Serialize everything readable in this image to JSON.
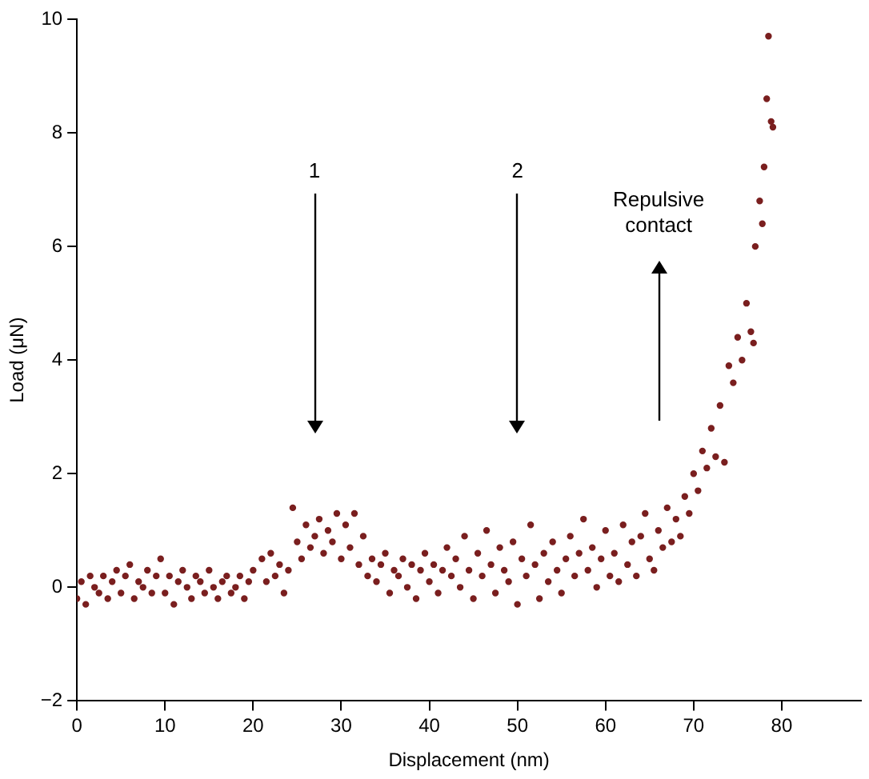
{
  "chart_data": {
    "type": "scatter",
    "xlabel": "Displacement (nm)",
    "ylabel": "Load (μN)",
    "xlim": [
      0,
      89
    ],
    "xticks": [
      0,
      10,
      20,
      30,
      40,
      50,
      60,
      70,
      80
    ],
    "ylim": [
      -2,
      10
    ],
    "yticks": [
      -2,
      0,
      2,
      4,
      6,
      8,
      10
    ],
    "grid": false,
    "legend": false,
    "marker": "circle",
    "annotations": [
      "1",
      "2",
      "Repulsive contact"
    ],
    "series": [
      {
        "color": "#7a1f1f",
        "x": [
          0,
          0.5,
          1,
          1.5,
          2,
          2.5,
          3,
          3.5,
          4,
          4.5,
          5,
          5.5,
          6,
          6.5,
          7,
          7.5,
          8,
          8.5,
          9,
          9.5,
          10,
          10.5,
          11,
          11.5,
          12,
          12.5,
          13,
          13.5,
          14,
          14.5,
          15,
          15.5,
          16,
          16.5,
          17,
          17.5,
          18,
          18.5,
          19,
          19.5,
          20,
          21,
          21.5,
          22,
          22.5,
          23,
          23.5,
          24,
          24.5,
          25,
          25.5,
          26,
          26.5,
          27,
          27.5,
          28,
          28.5,
          29,
          29.5,
          30,
          30.5,
          31,
          31.5,
          32,
          32.5,
          33,
          33.5,
          34,
          34.5,
          35,
          35.5,
          36,
          36.5,
          37,
          37.5,
          38,
          38.5,
          39,
          39.5,
          40,
          40.5,
          41,
          41.5,
          42,
          42.5,
          43,
          43.5,
          44,
          44.5,
          45,
          45.5,
          46,
          46.5,
          47,
          47.5,
          48,
          48.5,
          49,
          49.5,
          50,
          50.5,
          51,
          51.5,
          52,
          52.5,
          53,
          53.5,
          54,
          54.5,
          55,
          55.5,
          56,
          56.5,
          57,
          57.5,
          58,
          58.5,
          59,
          59.5,
          60,
          60.5,
          61,
          61.5,
          62,
          62.5,
          63,
          63.5,
          64,
          64.5,
          65,
          65.5,
          66,
          66.5,
          67,
          67.5,
          68,
          68.5,
          69,
          69.5,
          70,
          70.5,
          71,
          71.5,
          72,
          72.5,
          73,
          73.5,
          74,
          74.5,
          75,
          75.5,
          76,
          76.5,
          76.8,
          77,
          77.5,
          77.8,
          78,
          78.3,
          78.5,
          78.8,
          79
        ],
        "values": [
          -0.2,
          0.1,
          -0.3,
          0.2,
          0,
          -0.1,
          0.2,
          -0.2,
          0.1,
          0.3,
          -0.1,
          0.2,
          0.4,
          -0.2,
          0.1,
          0,
          0.3,
          -0.1,
          0.2,
          0.5,
          -0.1,
          0.2,
          -0.3,
          0.1,
          0.3,
          0,
          -0.2,
          0.2,
          0.1,
          -0.1,
          0.3,
          0,
          -0.2,
          0.1,
          0.2,
          -0.1,
          0,
          0.2,
          -0.2,
          0.1,
          0.3,
          0.5,
          0.1,
          0.6,
          0.2,
          0.4,
          -0.1,
          0.3,
          1.4,
          0.8,
          0.5,
          1.1,
          0.7,
          0.9,
          1.2,
          0.6,
          1.0,
          0.8,
          1.3,
          0.5,
          1.1,
          0.7,
          1.3,
          0.4,
          0.9,
          0.2,
          0.5,
          0.1,
          0.4,
          0.6,
          -0.1,
          0.3,
          0.2,
          0.5,
          0,
          0.4,
          -0.2,
          0.3,
          0.6,
          0.1,
          0.4,
          -0.1,
          0.3,
          0.7,
          0.2,
          0.5,
          0,
          0.9,
          0.3,
          -0.2,
          0.6,
          0.2,
          1.0,
          0.4,
          -0.1,
          0.7,
          0.3,
          0.1,
          0.8,
          -0.3,
          0.5,
          0.2,
          1.1,
          0.4,
          -0.2,
          0.6,
          0.1,
          0.8,
          0.3,
          -0.1,
          0.5,
          0.9,
          0.2,
          0.6,
          1.2,
          0.3,
          0.7,
          0,
          0.5,
          1.0,
          0.2,
          0.6,
          0.1,
          1.1,
          0.4,
          0.8,
          0.2,
          0.9,
          1.3,
          0.5,
          0.3,
          1.0,
          0.7,
          1.4,
          0.8,
          1.2,
          0.9,
          1.6,
          1.3,
          2.0,
          1.7,
          2.4,
          2.1,
          2.8,
          2.3,
          3.2,
          2.2,
          3.9,
          3.6,
          4.4,
          4.0,
          5.0,
          4.5,
          4.3,
          6.0,
          6.8,
          6.4,
          7.4,
          8.6,
          9.7,
          8.2,
          8.1
        ]
      }
    ]
  }
}
